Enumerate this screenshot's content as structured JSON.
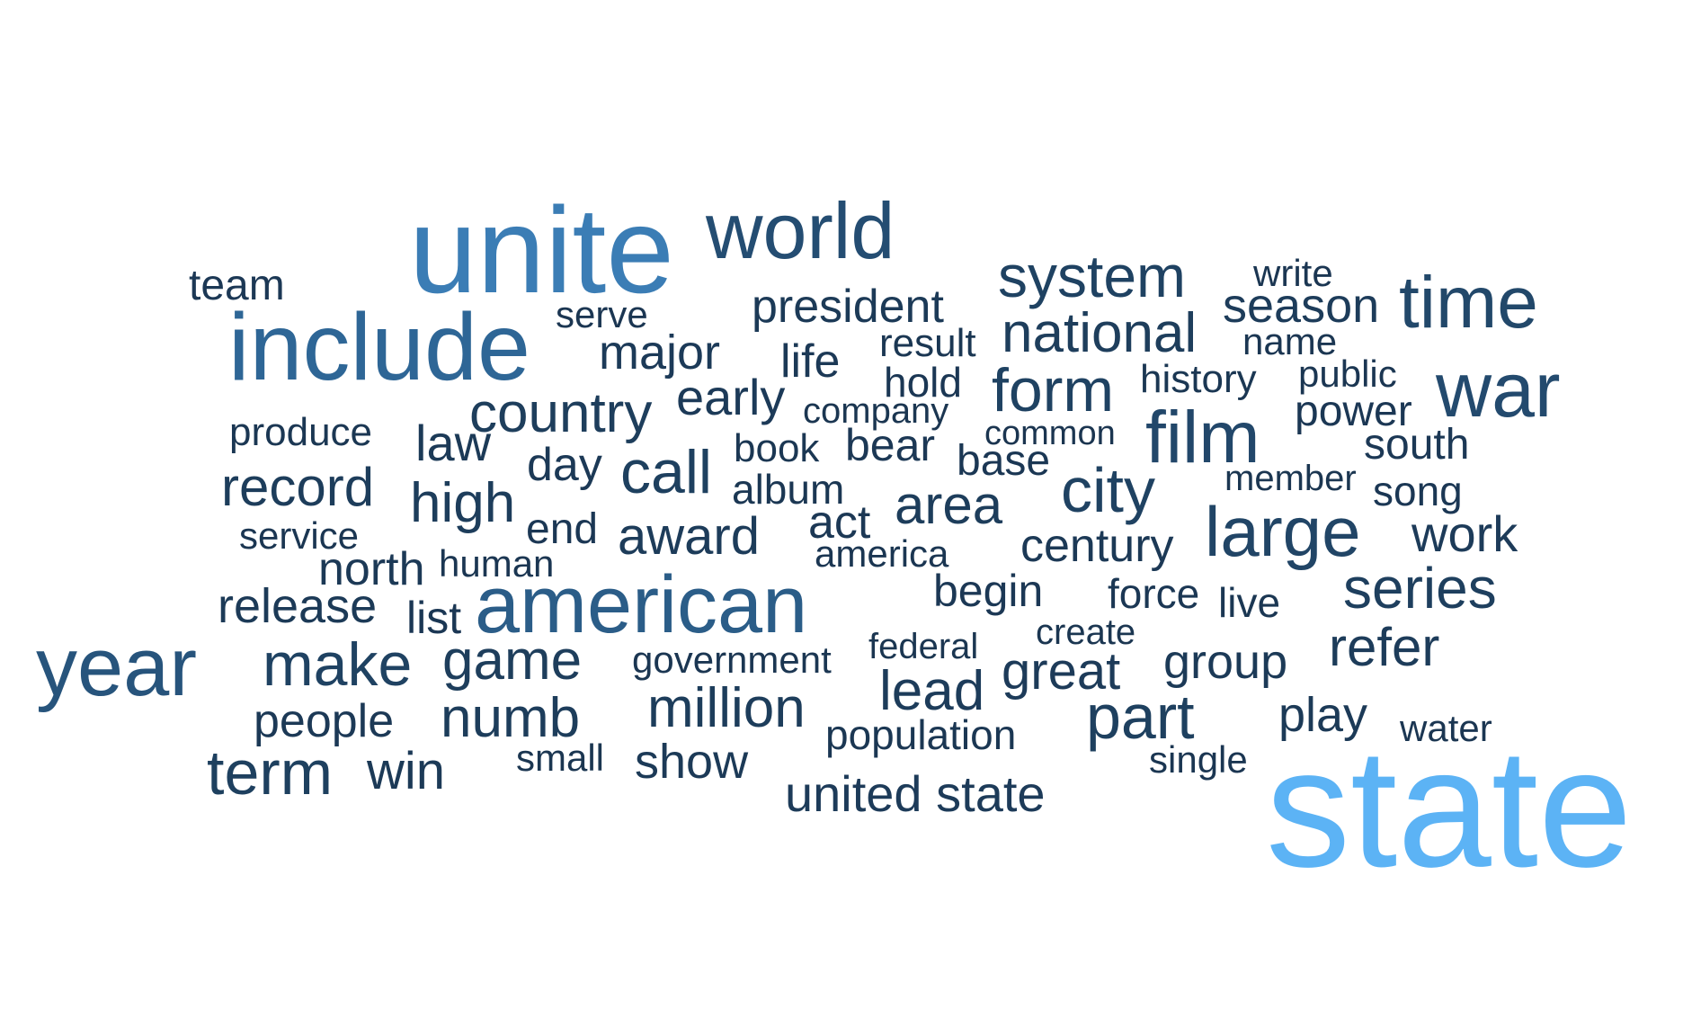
{
  "words": [
    {
      "text": "state",
      "weight": 1.0,
      "color": "#5cb3f5"
    },
    {
      "text": "unite",
      "weight": 0.62,
      "color": "#3b7db5"
    },
    {
      "text": "include",
      "weight": 0.56,
      "color": "#2e6696"
    },
    {
      "text": "american",
      "weight": 0.5,
      "color": "#2b5d88"
    },
    {
      "text": "year",
      "weight": 0.5,
      "color": "#27547c"
    },
    {
      "text": "world",
      "weight": 0.44,
      "color": "#244d72"
    },
    {
      "text": "war",
      "weight": 0.44,
      "color": "#234a6e"
    },
    {
      "text": "time",
      "weight": 0.42,
      "color": "#22486a"
    },
    {
      "text": "film",
      "weight": 0.42,
      "color": "#22476a"
    },
    {
      "text": "large",
      "weight": 0.4,
      "color": "#214566"
    },
    {
      "text": "system",
      "weight": 0.36,
      "color": "#1f4262"
    },
    {
      "text": "make",
      "weight": 0.36,
      "color": "#1f4262"
    },
    {
      "text": "form",
      "weight": 0.36,
      "color": "#1f4262"
    },
    {
      "text": "city",
      "weight": 0.36,
      "color": "#1f4262"
    },
    {
      "text": "term",
      "weight": 0.35,
      "color": "#1e405f"
    },
    {
      "text": "call",
      "weight": 0.35,
      "color": "#1e405f"
    },
    {
      "text": "part",
      "weight": 0.35,
      "color": "#1e405f"
    },
    {
      "text": "series",
      "weight": 0.33,
      "color": "#1e3f5e"
    },
    {
      "text": "national",
      "weight": 0.32,
      "color": "#1e3e5c"
    },
    {
      "text": "country",
      "weight": 0.32,
      "color": "#1e3e5c"
    },
    {
      "text": "game",
      "weight": 0.32,
      "color": "#1e3e5c"
    },
    {
      "text": "record",
      "weight": 0.31,
      "color": "#1d3d5b"
    },
    {
      "text": "high",
      "weight": 0.31,
      "color": "#1d3d5b"
    },
    {
      "text": "numb",
      "weight": 0.31,
      "color": "#1d3d5b"
    },
    {
      "text": "area",
      "weight": 0.31,
      "color": "#1d3d5b"
    },
    {
      "text": "million",
      "weight": 0.31,
      "color": "#1d3d5b"
    },
    {
      "text": "lead",
      "weight": 0.3,
      "color": "#1d3c5a"
    },
    {
      "text": "award",
      "weight": 0.3,
      "color": "#1d3c5a"
    },
    {
      "text": "season",
      "weight": 0.3,
      "color": "#1d3c5a"
    },
    {
      "text": "refer",
      "weight": 0.3,
      "color": "#1d3c5a"
    },
    {
      "text": "work",
      "weight": 0.29,
      "color": "#1d3b59"
    },
    {
      "text": "great",
      "weight": 0.29,
      "color": "#1d3b59"
    },
    {
      "text": "united state",
      "weight": 0.29,
      "color": "#1d3b59"
    },
    {
      "text": "early",
      "weight": 0.28,
      "color": "#1c3a58"
    },
    {
      "text": "major",
      "weight": 0.28,
      "color": "#1c3a58"
    },
    {
      "text": "release",
      "weight": 0.27,
      "color": "#1c3a57"
    },
    {
      "text": "president",
      "weight": 0.27,
      "color": "#1c3a57"
    },
    {
      "text": "win",
      "weight": 0.27,
      "color": "#1c3a57"
    },
    {
      "text": "group",
      "weight": 0.27,
      "color": "#1c3a57"
    },
    {
      "text": "law",
      "weight": 0.27,
      "color": "#1c3a57"
    },
    {
      "text": "show",
      "weight": 0.27,
      "color": "#1c3a57"
    },
    {
      "text": "play",
      "weight": 0.27,
      "color": "#1c3a57"
    },
    {
      "text": "century",
      "weight": 0.26,
      "color": "#1c3956"
    },
    {
      "text": "people",
      "weight": 0.26,
      "color": "#1c3956"
    },
    {
      "text": "north",
      "weight": 0.26,
      "color": "#1c3956"
    },
    {
      "text": "life",
      "weight": 0.26,
      "color": "#1c3956"
    },
    {
      "text": "day",
      "weight": 0.26,
      "color": "#1c3956"
    },
    {
      "text": "begin",
      "weight": 0.25,
      "color": "#1c3855"
    },
    {
      "text": "team",
      "weight": 0.25,
      "color": "#1c3855"
    },
    {
      "text": "bear",
      "weight": 0.25,
      "color": "#1c3855"
    },
    {
      "text": "act",
      "weight": 0.25,
      "color": "#1c3855"
    },
    {
      "text": "south",
      "weight": 0.25,
      "color": "#1c3855"
    },
    {
      "text": "power",
      "weight": 0.24,
      "color": "#1b3754"
    },
    {
      "text": "base",
      "weight": 0.24,
      "color": "#1b3754"
    },
    {
      "text": "list",
      "weight": 0.24,
      "color": "#1b3754"
    },
    {
      "text": "end",
      "weight": 0.24,
      "color": "#1b3754"
    },
    {
      "text": "force",
      "weight": 0.24,
      "color": "#1b3754"
    },
    {
      "text": "hold",
      "weight": 0.24,
      "color": "#1b3754"
    },
    {
      "text": "song",
      "weight": 0.24,
      "color": "#1b3754"
    },
    {
      "text": "live",
      "weight": 0.23,
      "color": "#1b3753"
    },
    {
      "text": "produce",
      "weight": 0.23,
      "color": "#1b3753"
    },
    {
      "text": "book",
      "weight": 0.23,
      "color": "#1b3753"
    },
    {
      "text": "population",
      "weight": 0.23,
      "color": "#1b3753"
    },
    {
      "text": "result",
      "weight": 0.23,
      "color": "#1b3753"
    },
    {
      "text": "history",
      "weight": 0.23,
      "color": "#1b3753"
    },
    {
      "text": "album",
      "weight": 0.23,
      "color": "#1b3753"
    },
    {
      "text": "write",
      "weight": 0.22,
      "color": "#1b3652"
    },
    {
      "text": "government",
      "weight": 0.22,
      "color": "#1b3652"
    },
    {
      "text": "serve",
      "weight": 0.22,
      "color": "#1b3652"
    },
    {
      "text": "name",
      "weight": 0.22,
      "color": "#1b3652"
    },
    {
      "text": "public",
      "weight": 0.22,
      "color": "#1b3652"
    },
    {
      "text": "human",
      "weight": 0.22,
      "color": "#1b3652"
    },
    {
      "text": "water",
      "weight": 0.22,
      "color": "#1b3652"
    },
    {
      "text": "america",
      "weight": 0.22,
      "color": "#1b3652"
    },
    {
      "text": "service",
      "weight": 0.22,
      "color": "#1b3652"
    },
    {
      "text": "single",
      "weight": 0.22,
      "color": "#1b3652"
    },
    {
      "text": "create",
      "weight": 0.21,
      "color": "#1b3651"
    },
    {
      "text": "federal",
      "weight": 0.21,
      "color": "#1b3651"
    },
    {
      "text": "small",
      "weight": 0.21,
      "color": "#1b3651"
    },
    {
      "text": "company",
      "weight": 0.21,
      "color": "#1b3651"
    },
    {
      "text": "member",
      "weight": 0.21,
      "color": "#1b3651"
    },
    {
      "text": "common",
      "weight": 0.2,
      "color": "#1b3550"
    }
  ]
}
